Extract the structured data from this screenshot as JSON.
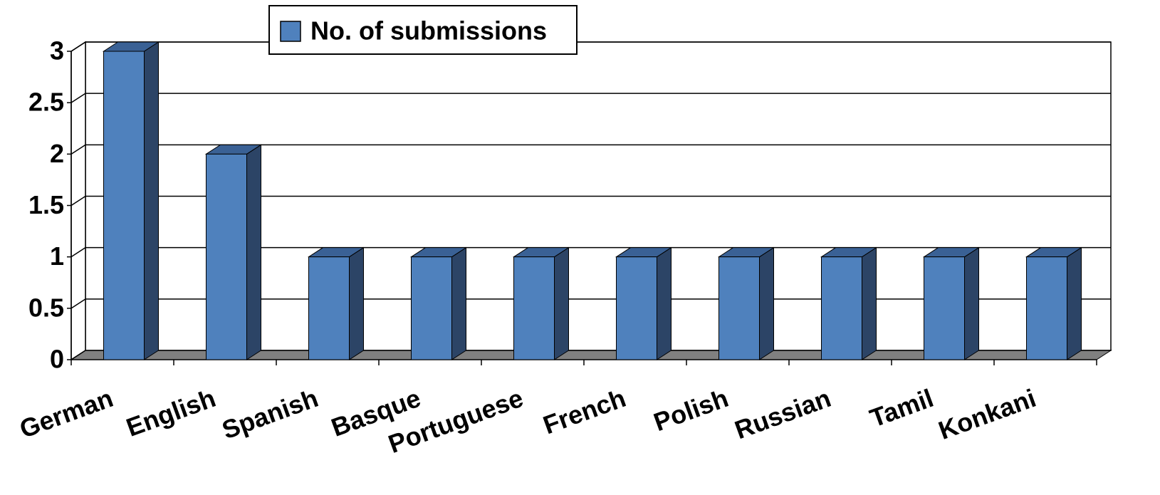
{
  "chart_data": {
    "type": "bar",
    "categories": [
      "German",
      "English",
      "Spanish",
      "Basque",
      "Portuguese",
      "French",
      "Polish",
      "Russian",
      "Tamil",
      "Konkani"
    ],
    "series": [
      {
        "name": "No. of submissions",
        "color": "#4f81bd",
        "values": [
          3,
          2,
          1,
          1,
          1,
          1,
          1,
          1,
          1,
          1
        ]
      }
    ],
    "ylim": [
      0,
      3
    ],
    "yticks": [
      0,
      0.5,
      1,
      1.5,
      2,
      2.5,
      3
    ],
    "grid": true,
    "legend": "top"
  }
}
